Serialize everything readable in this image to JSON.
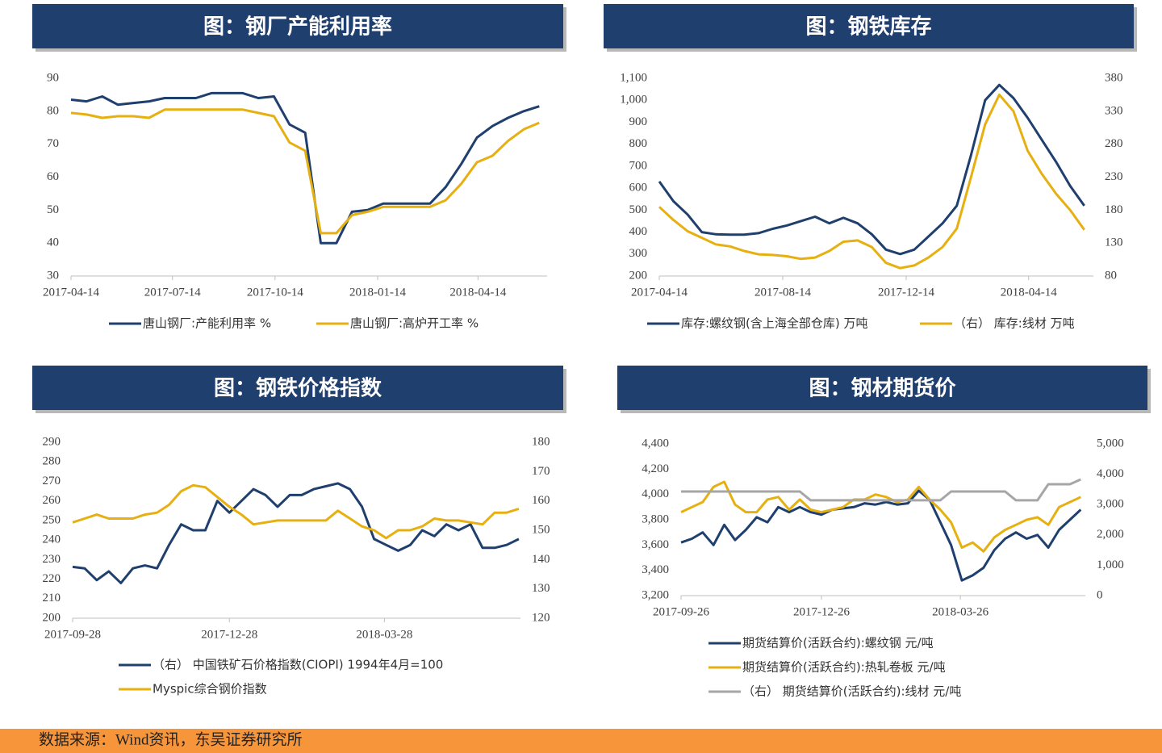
{
  "chart_data": [
    {
      "type": "line",
      "title": "图：钢厂产能利用率",
      "x": [
        "2017-04-14",
        "2017-04-28",
        "2017-05-12",
        "2017-05-26",
        "2017-06-09",
        "2017-06-23",
        "2017-07-07",
        "2017-07-21",
        "2017-08-04",
        "2017-08-18",
        "2017-09-01",
        "2017-09-15",
        "2017-09-29",
        "2017-10-13",
        "2017-10-27",
        "2017-11-10",
        "2017-11-24",
        "2017-12-08",
        "2017-12-22",
        "2018-01-05",
        "2018-01-19",
        "2018-02-02",
        "2018-02-16",
        "2018-03-02",
        "2018-03-16",
        "2018-03-30",
        "2018-04-13",
        "2018-04-27",
        "2018-05-11",
        "2018-05-25",
        "2018-06-08"
      ],
      "xlim": [
        "2017-04-14",
        "2018-06-15"
      ],
      "xticks": [
        "2017-04-14",
        "2017-07-14",
        "2017-10-14",
        "2018-01-14",
        "2018-04-14"
      ],
      "ylim": [
        30,
        90
      ],
      "yticks": [
        30,
        40,
        50,
        60,
        70,
        80,
        90
      ],
      "series": [
        {
          "name": "唐山钢厂:产能利用率 %",
          "color": "#1f3f6e",
          "values": [
            83.5,
            83,
            84.5,
            82,
            82.5,
            83,
            84,
            84,
            84,
            85.5,
            85.5,
            85.5,
            84,
            84.5,
            76,
            73.5,
            40,
            40,
            49.5,
            50,
            52,
            52,
            52,
            52,
            57,
            64,
            72,
            75.5,
            78,
            80,
            81.5
          ]
        },
        {
          "name": "唐山钢厂:高炉开工率 %",
          "color": "#e6b011",
          "values": [
            79.5,
            79,
            78,
            78.5,
            78.5,
            78,
            80.5,
            80.5,
            80.5,
            80.5,
            80.5,
            80.5,
            79.5,
            78.5,
            70.5,
            68,
            43,
            43,
            48.5,
            49.5,
            51,
            51,
            51,
            51,
            53,
            58,
            64.5,
            66.5,
            71,
            74.5,
            76.5
          ]
        }
      ]
    },
    {
      "type": "line",
      "title": "图：钢铁库存",
      "x": [
        "2017-04-14",
        "2017-04-28",
        "2017-05-12",
        "2017-05-26",
        "2017-06-09",
        "2017-06-23",
        "2017-07-07",
        "2017-07-21",
        "2017-08-04",
        "2017-08-18",
        "2017-09-01",
        "2017-09-15",
        "2017-09-29",
        "2017-10-13",
        "2017-10-27",
        "2017-11-10",
        "2017-11-24",
        "2017-12-08",
        "2017-12-22",
        "2018-01-05",
        "2018-01-19",
        "2018-02-02",
        "2018-02-16",
        "2018-03-02",
        "2018-03-16",
        "2018-03-30",
        "2018-04-13",
        "2018-04-27",
        "2018-05-11",
        "2018-05-25",
        "2018-06-08"
      ],
      "xlim": [
        "2017-04-14",
        "2018-06-17"
      ],
      "xticks": [
        "2017-04-14",
        "2017-08-14",
        "2017-12-14",
        "2018-04-14"
      ],
      "ylim": [
        200,
        1100
      ],
      "yticks": [
        200,
        300,
        400,
        500,
        600,
        700,
        800,
        900,
        {
          "value": 1000,
          "label": "1,000"
        },
        {
          "value": 1100,
          "label": "1,100"
        }
      ],
      "y2lim": [
        80,
        380
      ],
      "y2ticks": [
        80,
        130,
        180,
        230,
        280,
        330,
        380
      ],
      "series": [
        {
          "name": "库存:螺纹钢(含上海全部仓库) 万吨",
          "color": "#1f3f6e",
          "values": [
            630,
            540,
            480,
            400,
            390,
            388,
            388,
            395,
            415,
            430,
            450,
            470,
            440,
            465,
            440,
            390,
            320,
            300,
            320,
            380,
            440,
            520,
            750,
            1000,
            1070,
            1010,
            920,
            820,
            720,
            610,
            520
          ]
        },
        {
          "name": "（右） 库存:线材 万吨",
          "color": "#e6b011",
          "axis": "y2",
          "values": [
            185,
            165,
            148,
            138,
            128,
            125,
            118,
            113,
            112,
            110,
            106,
            108,
            118,
            132,
            134,
            124,
            100,
            92,
            96,
            108,
            124,
            152,
            230,
            310,
            355,
            330,
            270,
            235,
            205,
            180,
            150
          ]
        }
      ]
    },
    {
      "type": "line",
      "title": "图：钢铁价格指数",
      "x": [
        "2017-09-28",
        "2017-10-05",
        "2017-10-12",
        "2017-10-19",
        "2017-10-26",
        "2017-11-02",
        "2017-11-09",
        "2017-11-16",
        "2017-11-23",
        "2017-11-30",
        "2017-12-07",
        "2017-12-14",
        "2017-12-21",
        "2017-12-28",
        "2018-01-04",
        "2018-01-11",
        "2018-01-18",
        "2018-01-25",
        "2018-02-01",
        "2018-02-08",
        "2018-02-15",
        "2018-02-22",
        "2018-03-01",
        "2018-03-08",
        "2018-03-15",
        "2018-03-22",
        "2018-03-29",
        "2018-04-05",
        "2018-04-12",
        "2018-04-19",
        "2018-04-26",
        "2018-05-03",
        "2018-05-10",
        "2018-05-17",
        "2018-05-24",
        "2018-05-31",
        "2018-06-07",
        "2018-06-14"
      ],
      "xlim": [
        "2017-09-28",
        "2018-06-15"
      ],
      "xticks": [
        "2017-09-28",
        "2017-12-28",
        "2018-03-28"
      ],
      "ylim": [
        200,
        290
      ],
      "yticks": [
        200,
        210,
        220,
        230,
        240,
        250,
        260,
        270,
        280,
        290
      ],
      "y2lim": [
        120,
        180
      ],
      "y2ticks": [
        120,
        130,
        140,
        150,
        160,
        170,
        180
      ],
      "series": [
        {
          "name": "（右） 中国铁矿石价格指数(CIOPI) 1994年4月=100",
          "color": "#1f3f6e",
          "axis": "y2",
          "values": [
            137.5,
            137,
            133,
            136,
            132,
            137,
            138,
            137,
            145,
            152,
            150,
            150,
            160,
            156,
            160,
            164,
            162,
            158,
            162,
            162,
            164,
            165,
            166,
            164,
            158,
            147,
            145,
            143,
            145,
            150,
            148,
            152,
            150,
            152,
            144,
            144,
            145,
            147
          ]
        },
        {
          "name": "Myspic综合钢价指数",
          "color": "#e6b011",
          "values": [
            249,
            251,
            253,
            251,
            251,
            251,
            253,
            254,
            258,
            265,
            268,
            267,
            262,
            257,
            253,
            248,
            249,
            250,
            250,
            250,
            250,
            250,
            255,
            251,
            247,
            245,
            241,
            245,
            245,
            247,
            251,
            250,
            250,
            249,
            248,
            254,
            254,
            256
          ]
        }
      ]
    },
    {
      "type": "line",
      "title": "图：钢材期货价",
      "x": [
        "2017-09-26",
        "2017-10-03",
        "2017-10-10",
        "2017-10-17",
        "2017-10-24",
        "2017-10-31",
        "2017-11-07",
        "2017-11-14",
        "2017-11-21",
        "2017-11-28",
        "2017-12-05",
        "2017-12-12",
        "2017-12-19",
        "2017-12-26",
        "2018-01-02",
        "2018-01-09",
        "2018-01-16",
        "2018-01-23",
        "2018-01-30",
        "2018-02-06",
        "2018-02-13",
        "2018-02-20",
        "2018-02-27",
        "2018-03-06",
        "2018-03-13",
        "2018-03-20",
        "2018-03-27",
        "2018-04-03",
        "2018-04-10",
        "2018-04-17",
        "2018-04-24",
        "2018-05-01",
        "2018-05-08",
        "2018-05-15",
        "2018-05-22",
        "2018-05-29",
        "2018-06-05",
        "2018-06-12"
      ],
      "xlim": [
        "2017-09-26",
        "2018-06-15"
      ],
      "xticks": [
        "2017-09-26",
        "2017-12-26",
        "2018-03-26"
      ],
      "ylim": [
        3200,
        4400
      ],
      "yticks": [
        {
          "value": 3200,
          "label": "3,200"
        },
        {
          "value": 3400,
          "label": "3,400"
        },
        {
          "value": 3600,
          "label": "3,600"
        },
        {
          "value": 3800,
          "label": "3,800"
        },
        {
          "value": 4000,
          "label": "4,000"
        },
        {
          "value": 4200,
          "label": "4,200"
        },
        {
          "value": 4400,
          "label": "4,400"
        }
      ],
      "y2lim": [
        0,
        5000
      ],
      "y2ticks": [
        0,
        {
          "value": 1000,
          "label": "1,000"
        },
        {
          "value": 2000,
          "label": "2,000"
        },
        {
          "value": 3000,
          "label": "3,000"
        },
        {
          "value": 4000,
          "label": "4,000"
        },
        {
          "value": 5000,
          "label": "5,000"
        }
      ],
      "series": [
        {
          "name": "期货结算价(活跃合约):螺纹钢 元/吨",
          "color": "#1f3f6e",
          "values": [
            3620,
            3650,
            3700,
            3600,
            3760,
            3640,
            3720,
            3820,
            3780,
            3900,
            3860,
            3900,
            3860,
            3840,
            3880,
            3890,
            3900,
            3930,
            3920,
            3940,
            3920,
            3930,
            4030,
            3960,
            3780,
            3600,
            3320,
            3360,
            3420,
            3560,
            3650,
            3700,
            3650,
            3680,
            3580,
            3720,
            3800,
            3880
          ]
        },
        {
          "name": "期货结算价(活跃合约):热轧卷板 元/吨",
          "color": "#e6b011",
          "values": [
            3860,
            3900,
            3940,
            4060,
            4100,
            3920,
            3860,
            3860,
            3960,
            3980,
            3880,
            3960,
            3880,
            3860,
            3880,
            3900,
            3960,
            3960,
            4000,
            3980,
            3940,
            3960,
            4060,
            3960,
            3880,
            3780,
            3580,
            3620,
            3550,
            3660,
            3720,
            3760,
            3800,
            3820,
            3760,
            3900,
            3940,
            3980
          ]
        },
        {
          "name": "（右） 期货结算价(活跃合约):线材 元/吨",
          "color": "#a6a6a6",
          "axis": "y2",
          "values": [
            3430,
            3430,
            3430,
            3430,
            3430,
            3430,
            3430,
            3430,
            3430,
            3430,
            3430,
            3430,
            3140,
            3140,
            3140,
            3140,
            3140,
            3140,
            3140,
            3140,
            3140,
            3140,
            3140,
            3140,
            3140,
            3430,
            3430,
            3430,
            3430,
            3430,
            3430,
            3140,
            3140,
            3140,
            3670,
            3670,
            3670,
            3830
          ]
        }
      ]
    }
  ],
  "source": "数据来源：Wind资讯，东吴证券研究所"
}
